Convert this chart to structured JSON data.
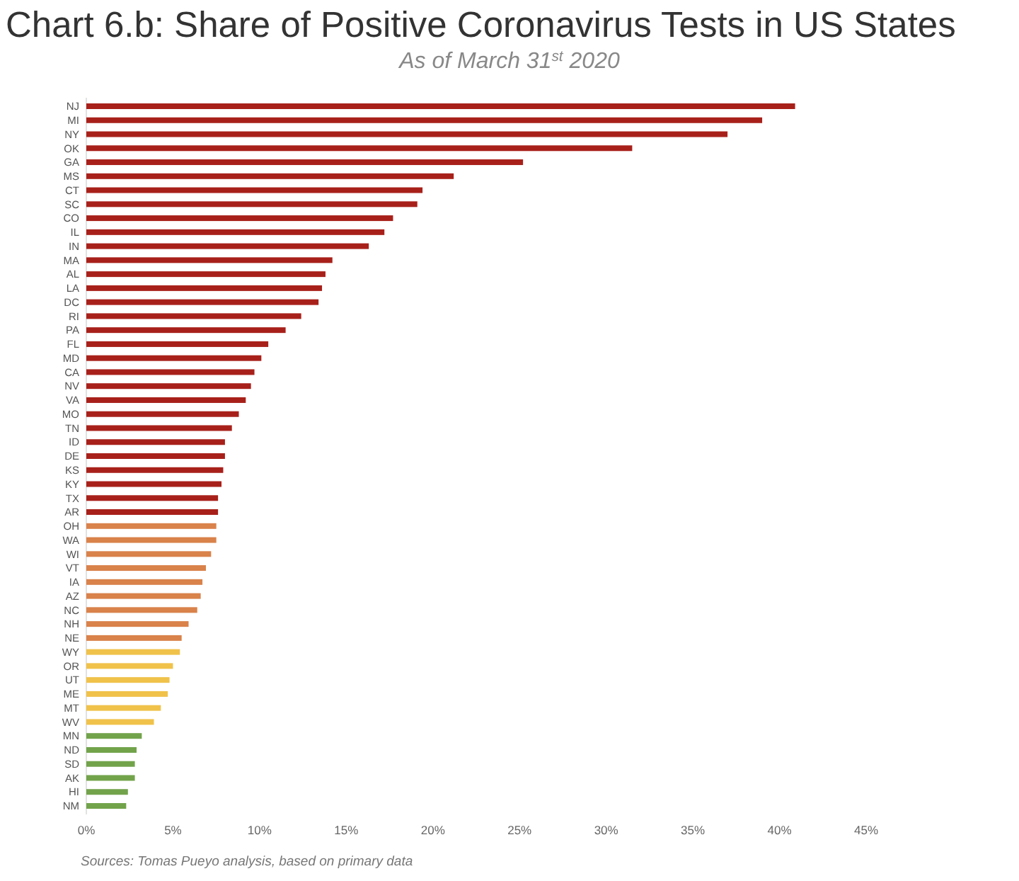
{
  "chart_data": {
    "type": "bar",
    "orientation": "horizontal",
    "title": "Chart 6.b: Share of Positive Coronavirus Tests in US States",
    "subtitle": "As of March 31$^{st}$ 2020",
    "categories": [
      "NJ",
      "MI",
      "NY",
      "OK",
      "GA",
      "MS",
      "CT",
      "SC",
      "CO",
      "IL",
      "IN",
      "MA",
      "AL",
      "LA",
      "DC",
      "RI",
      "PA",
      "FL",
      "MD",
      "CA",
      "NV",
      "VA",
      "MO",
      "TN",
      "ID",
      "DE",
      "KS",
      "KY",
      "TX",
      "AR",
      "OH",
      "WA",
      "WI",
      "VT",
      "IA",
      "AZ",
      "NC",
      "NH",
      "NE",
      "WY",
      "OR",
      "UT",
      "ME",
      "MT",
      "WV",
      "MN",
      "ND",
      "SD",
      "AK",
      "HI",
      "NM"
    ],
    "values": [
      40.9,
      39.0,
      37.0,
      31.5,
      25.2,
      21.2,
      19.4,
      19.1,
      17.7,
      17.2,
      16.3,
      14.2,
      13.8,
      13.6,
      13.4,
      12.4,
      11.5,
      10.5,
      10.1,
      9.7,
      9.5,
      9.2,
      8.8,
      8.4,
      8.0,
      8.0,
      7.9,
      7.8,
      7.6,
      7.6,
      7.5,
      7.5,
      7.2,
      6.9,
      6.7,
      6.6,
      6.4,
      5.9,
      5.5,
      5.4,
      5.0,
      4.8,
      4.7,
      4.3,
      3.9,
      3.2,
      2.9,
      2.8,
      2.8,
      2.4,
      2.3
    ],
    "colors": [
      "#a8201a",
      "#a8201a",
      "#a8201a",
      "#a8201a",
      "#a8201a",
      "#a8201a",
      "#a8201a",
      "#a8201a",
      "#a8201a",
      "#a8201a",
      "#a8201a",
      "#a8201a",
      "#a8201a",
      "#a8201a",
      "#a8201a",
      "#a8201a",
      "#a8201a",
      "#a8201a",
      "#a8201a",
      "#a8201a",
      "#a8201a",
      "#a8201a",
      "#a8201a",
      "#a8201a",
      "#a8201a",
      "#a8201a",
      "#a8201a",
      "#a8201a",
      "#a8201a",
      "#a8201a",
      "#d9824a",
      "#d9824a",
      "#d9824a",
      "#d9824a",
      "#d9824a",
      "#d9824a",
      "#d9824a",
      "#d9824a",
      "#d9824a",
      "#f0c24a",
      "#f0c24a",
      "#f0c24a",
      "#f0c24a",
      "#f0c24a",
      "#f0c24a",
      "#72a34b",
      "#72a34b",
      "#72a34b",
      "#72a34b",
      "#72a34b",
      "#72a34b"
    ],
    "xlim": [
      0,
      45
    ],
    "xticks": [
      {
        "value": 0,
        "label": "0%"
      },
      {
        "value": 5,
        "label": "5%"
      },
      {
        "value": 10,
        "label": "10%"
      },
      {
        "value": 15,
        "label": "15%"
      },
      {
        "value": 20,
        "label": "20%"
      },
      {
        "value": 25,
        "label": "25%"
      },
      {
        "value": 30,
        "label": "30%"
      },
      {
        "value": 35,
        "label": "35%"
      },
      {
        "value": 40,
        "label": "40%"
      },
      {
        "value": 45,
        "label": "45%"
      }
    ],
    "annotations": [
      "Sources: Tomas Pueyo analysis, based on primary data"
    ]
  }
}
